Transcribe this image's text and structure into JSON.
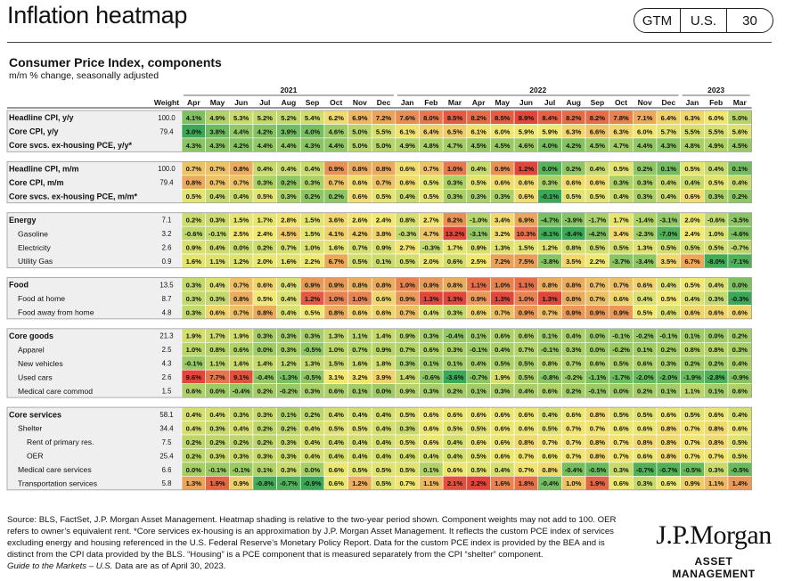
{
  "header": {
    "title": "Inflation heatmap",
    "tags": [
      "GTM",
      "U.S.",
      "30"
    ]
  },
  "chart_header": {
    "title": "Consumer Price Index, components",
    "subtitle": "m/m % change, seasonally adjusted"
  },
  "footnote": {
    "source": "Source: BLS, FactSet, J.P. Morgan Asset Management. Heatmap shading is relative to the two-year period shown. Component weights may not add to 100. OER refers to owner’s equivalent rent. *Core services ex-housing is an approximation by J.P. Morgan Asset Management. It reflects the custom PCE index of services excluding energy and housing referenced in the U.S. Federal Reserve’s Monetary Policy Report. Data for the custom PCE index is provided by the BEA and is distinct from the CPI data provided by the BLS. “Housing” is a PCE component that is measured separately from the CPI “shelter” component.",
    "guide_italic": "Guide to the Markets – U.S.",
    "guide_rest": " Data are as of April 30, 2023."
  },
  "logo": {
    "main": "J.P.Morgan",
    "sub": "ASSET MANAGEMENT"
  },
  "colors": {
    "low": "#3aa856",
    "mid": "#f2e974",
    "high": "#e0463a",
    "grid": "#bdbdbd",
    "row_bg": "#efefef"
  },
  "chart_data": {
    "type": "heatmap",
    "title": "Consumer Price Index, components",
    "subtitle": "m/m % change, seasonally adjusted",
    "weight_label": "Weight",
    "year_labels": [
      {
        "year": "2021",
        "start": 0,
        "end": 8
      },
      {
        "year": "2022",
        "start": 9,
        "end": 20
      },
      {
        "year": "2023",
        "start": 21,
        "end": 23
      }
    ],
    "months": [
      "Apr",
      "May",
      "Jun",
      "Jul",
      "Aug",
      "Sep",
      "Oct",
      "Nov",
      "Dec",
      "Jan",
      "Feb",
      "Mar",
      "Apr",
      "May",
      "Jun",
      "Jul",
      "Aug",
      "Sep",
      "Oct",
      "Nov",
      "Dec",
      "Jan",
      "Feb",
      "Mar"
    ],
    "groups": [
      {
        "rows": [
          {
            "label": "Headline CPI, y/y",
            "bold": true,
            "weight": "100.0",
            "values": [
              4.1,
              4.9,
              5.3,
              5.2,
              5.2,
              5.4,
              6.2,
              6.9,
              7.2,
              7.6,
              8.0,
              8.5,
              8.2,
              8.5,
              8.9,
              8.4,
              8.2,
              8.2,
              7.8,
              7.1,
              6.4,
              6.3,
              6.0,
              5.0
            ]
          },
          {
            "label": "Core CPI, y/y",
            "bold": true,
            "weight": "79.4",
            "values": [
              3.0,
              3.8,
              4.4,
              4.2,
              3.9,
              4.0,
              4.6,
              5.0,
              5.5,
              6.1,
              6.4,
              6.5,
              6.1,
              6.0,
              5.9,
              5.9,
              6.3,
              6.6,
              6.3,
              6.0,
              5.7,
              5.5,
              5.5,
              5.6
            ]
          },
          {
            "label": "Core svcs. ex-housing PCE, y/y*",
            "bold": true,
            "weight": "",
            "values": [
              4.3,
              4.3,
              4.2,
              4.4,
              4.4,
              4.3,
              4.4,
              5.0,
              5.0,
              4.9,
              4.8,
              4.7,
              4.5,
              4.5,
              4.6,
              4.0,
              4.2,
              4.5,
              4.7,
              4.4,
              4.3,
              4.8,
              4.9,
              4.5
            ]
          }
        ]
      },
      {
        "rows": [
          {
            "label": "Headline CPI, m/m",
            "bold": true,
            "weight": "100.0",
            "values": [
              0.7,
              0.7,
              0.8,
              0.4,
              0.4,
              0.4,
              0.9,
              0.8,
              0.8,
              0.6,
              0.7,
              1.0,
              0.4,
              0.9,
              1.2,
              0.0,
              0.2,
              0.4,
              0.5,
              0.2,
              0.1,
              0.5,
              0.4,
              0.1
            ]
          },
          {
            "label": "Core CPI, m/m",
            "bold": true,
            "weight": "79.4",
            "values": [
              0.8,
              0.7,
              0.7,
              0.3,
              0.2,
              0.3,
              0.7,
              0.6,
              0.7,
              0.6,
              0.5,
              0.3,
              0.5,
              0.6,
              0.6,
              0.3,
              0.6,
              0.6,
              0.3,
              0.3,
              0.4,
              0.4,
              0.5,
              0.4
            ]
          },
          {
            "label": "Core svcs. ex-housing PCE, m/m*",
            "bold": true,
            "weight": "",
            "values": [
              0.5,
              0.4,
              0.4,
              0.5,
              0.3,
              0.2,
              0.2,
              0.6,
              0.5,
              0.4,
              0.5,
              0.3,
              0.3,
              0.3,
              0.6,
              -0.1,
              0.5,
              0.5,
              0.4,
              0.3,
              0.4,
              0.6,
              0.3,
              0.2
            ]
          }
        ]
      },
      {
        "rows": [
          {
            "label": "Energy",
            "bold": true,
            "weight": "7.1",
            "values": [
              0.2,
              0.3,
              1.5,
              1.7,
              2.8,
              1.5,
              3.6,
              2.6,
              2.4,
              0.8,
              2.7,
              8.2,
              -1.0,
              3.4,
              6.9,
              -4.7,
              -3.9,
              -1.7,
              1.7,
              -1.4,
              -3.1,
              2.0,
              -0.6,
              -3.5
            ]
          },
          {
            "label": "Gasoline",
            "bold": false,
            "weight": "3.2",
            "values": [
              -0.6,
              -0.1,
              2.5,
              2.4,
              4.5,
              1.5,
              4.1,
              4.2,
              3.8,
              -0.3,
              4.7,
              13.2,
              -3.1,
              3.2,
              10.3,
              -8.1,
              -8.4,
              -4.2,
              3.4,
              -2.3,
              -7.0,
              2.4,
              1.0,
              -4.6
            ]
          },
          {
            "label": "Electricity",
            "bold": false,
            "weight": "2.6",
            "values": [
              0.9,
              0.4,
              0.0,
              0.2,
              0.7,
              1.0,
              1.6,
              0.7,
              0.9,
              2.7,
              -0.3,
              1.7,
              0.9,
              1.3,
              1.5,
              1.2,
              0.8,
              0.5,
              0.5,
              1.3,
              0.5,
              0.5,
              0.5,
              -0.7
            ]
          },
          {
            "label": "Utility Gas",
            "bold": false,
            "weight": "0.9",
            "values": [
              1.6,
              1.1,
              1.2,
              2.0,
              1.6,
              2.2,
              6.7,
              0.5,
              0.1,
              0.5,
              2.0,
              0.6,
              2.5,
              7.2,
              7.5,
              -3.8,
              3.5,
              2.2,
              -3.7,
              -3.4,
              3.5,
              6.7,
              -8.0,
              -7.1
            ]
          }
        ]
      },
      {
        "rows": [
          {
            "label": "Food",
            "bold": true,
            "weight": "13.5",
            "values": [
              0.3,
              0.4,
              0.7,
              0.6,
              0.4,
              0.9,
              0.9,
              0.8,
              0.8,
              1.0,
              0.9,
              0.8,
              1.1,
              1.0,
              1.1,
              0.8,
              0.8,
              0.7,
              0.7,
              0.6,
              0.4,
              0.5,
              0.4,
              0.0
            ]
          },
          {
            "label": "Food at home",
            "bold": false,
            "weight": "8.7",
            "values": [
              0.3,
              0.3,
              0.8,
              0.5,
              0.4,
              1.2,
              1.0,
              1.0,
              0.6,
              0.9,
              1.3,
              1.3,
              0.9,
              1.3,
              1.0,
              1.3,
              0.8,
              0.7,
              0.6,
              0.4,
              0.5,
              0.4,
              0.3,
              -0.3
            ]
          },
          {
            "label": "Food away from home",
            "bold": false,
            "weight": "4.8",
            "values": [
              0.3,
              0.6,
              0.7,
              0.8,
              0.4,
              0.5,
              0.8,
              0.6,
              0.6,
              0.7,
              0.4,
              0.3,
              0.6,
              0.7,
              0.9,
              0.7,
              0.9,
              0.9,
              0.9,
              0.5,
              0.4,
              0.6,
              0.6,
              0.6
            ]
          }
        ]
      },
      {
        "rows": [
          {
            "label": "Core goods",
            "bold": true,
            "weight": "21.3",
            "values": [
              1.9,
              1.7,
              1.9,
              0.3,
              0.3,
              0.3,
              1.3,
              1.1,
              1.4,
              0.9,
              0.3,
              -0.4,
              0.1,
              0.6,
              0.6,
              0.1,
              0.4,
              0.0,
              -0.1,
              -0.2,
              -0.1,
              0.1,
              0.0,
              0.2
            ]
          },
          {
            "label": "Apparel",
            "bold": false,
            "weight": "2.5",
            "values": [
              1.0,
              0.8,
              0.6,
              0.0,
              0.3,
              -0.5,
              1.0,
              0.7,
              0.9,
              0.7,
              0.6,
              0.3,
              -0.1,
              0.4,
              0.7,
              -0.1,
              0.3,
              0.0,
              -0.2,
              0.1,
              0.2,
              0.8,
              0.8,
              0.3
            ]
          },
          {
            "label": "New vehicles",
            "bold": false,
            "weight": "4.3",
            "values": [
              -0.1,
              1.1,
              1.6,
              1.4,
              1.2,
              1.3,
              1.5,
              1.6,
              1.8,
              0.3,
              0.1,
              0.1,
              0.4,
              0.5,
              0.5,
              0.8,
              0.7,
              0.6,
              0.5,
              0.6,
              0.3,
              0.2,
              0.2,
              0.4
            ]
          },
          {
            "label": "Used cars",
            "bold": false,
            "weight": "2.6",
            "values": [
              9.6,
              7.7,
              9.1,
              -0.4,
              -1.3,
              -0.5,
              3.1,
              3.2,
              3.9,
              1.4,
              -0.6,
              -3.6,
              -0.7,
              1.9,
              0.5,
              -0.8,
              -0.2,
              -1.1,
              -1.7,
              -2.0,
              -2.0,
              -1.9,
              -2.8,
              -0.9
            ]
          },
          {
            "label": "Medical care commod",
            "bold": false,
            "weight": "1.5",
            "values": [
              0.6,
              0.0,
              -0.4,
              0.2,
              -0.2,
              0.3,
              0.6,
              0.1,
              0.0,
              0.9,
              0.3,
              0.2,
              0.1,
              0.3,
              0.4,
              0.6,
              0.2,
              -0.1,
              0.0,
              0.2,
              0.1,
              1.1,
              0.1,
              0.6
            ]
          }
        ]
      },
      {
        "rows": [
          {
            "label": "Core services",
            "bold": true,
            "weight": "58.1",
            "values": [
              0.4,
              0.4,
              0.3,
              0.3,
              0.1,
              0.2,
              0.4,
              0.4,
              0.4,
              0.5,
              0.6,
              0.6,
              0.6,
              0.6,
              0.6,
              0.4,
              0.6,
              0.8,
              0.5,
              0.5,
              0.6,
              0.5,
              0.6,
              0.4
            ]
          },
          {
            "label": "Shelter",
            "bold": false,
            "weight": "34.4",
            "values": [
              0.4,
              0.3,
              0.4,
              0.2,
              0.2,
              0.4,
              0.5,
              0.5,
              0.4,
              0.3,
              0.6,
              0.5,
              0.5,
              0.6,
              0.6,
              0.5,
              0.7,
              0.7,
              0.6,
              0.6,
              0.8,
              0.7,
              0.8,
              0.6
            ]
          },
          {
            "label": "Rent of primary res.",
            "bold": false,
            "indent": 2,
            "weight": "7.5",
            "values": [
              0.2,
              0.2,
              0.2,
              0.2,
              0.3,
              0.4,
              0.4,
              0.4,
              0.4,
              0.5,
              0.6,
              0.4,
              0.6,
              0.6,
              0.8,
              0.7,
              0.7,
              0.8,
              0.7,
              0.8,
              0.8,
              0.7,
              0.8,
              0.5
            ]
          },
          {
            "label": "OER",
            "bold": false,
            "indent": 2,
            "weight": "25.4",
            "values": [
              0.2,
              0.3,
              0.3,
              0.3,
              0.3,
              0.4,
              0.4,
              0.4,
              0.4,
              0.4,
              0.4,
              0.4,
              0.5,
              0.6,
              0.7,
              0.6,
              0.7,
              0.8,
              0.7,
              0.6,
              0.8,
              0.7,
              0.7,
              0.5
            ]
          },
          {
            "label": "Medical care services",
            "bold": false,
            "weight": "6.6",
            "values": [
              0.0,
              -0.1,
              -0.1,
              0.1,
              0.3,
              0.0,
              0.6,
              0.5,
              0.5,
              0.5,
              0.1,
              0.6,
              0.5,
              0.4,
              0.7,
              0.8,
              -0.4,
              -0.5,
              0.3,
              -0.7,
              -0.7,
              -0.5,
              0.3,
              -0.5
            ]
          },
          {
            "label": "Transportation services",
            "bold": false,
            "weight": "5.8",
            "values": [
              1.3,
              1.9,
              0.9,
              -0.8,
              -0.7,
              -0.9,
              0.6,
              1.2,
              0.5,
              0.7,
              1.1,
              2.1,
              2.2,
              1.6,
              1.8,
              -0.4,
              1.0,
              1.9,
              0.6,
              0.3,
              0.6,
              0.9,
              1.1,
              1.4
            ]
          }
        ]
      }
    ]
  }
}
